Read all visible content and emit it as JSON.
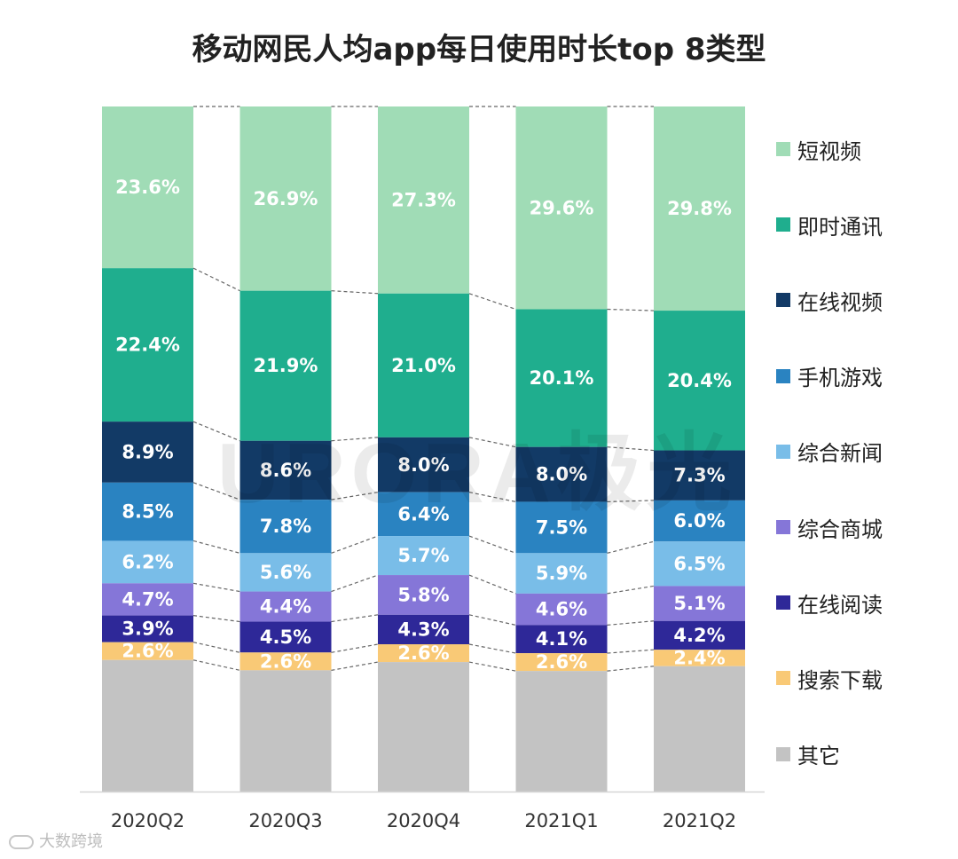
{
  "chart_data": {
    "type": "bar",
    "stacked": true,
    "title": "移动网民人均app每日使用时长top 8类型",
    "categories": [
      "2020Q2",
      "2020Q3",
      "2020Q4",
      "2021Q1",
      "2021Q2"
    ],
    "series": [
      {
        "name": "短视频",
        "color": "#a0dcb6",
        "values": [
          23.6,
          26.9,
          27.3,
          29.6,
          29.8
        ]
      },
      {
        "name": "即时通讯",
        "color": "#1fae8e",
        "values": [
          22.4,
          21.9,
          21.0,
          20.1,
          20.4
        ]
      },
      {
        "name": "在线视频",
        "color": "#123a66",
        "values": [
          8.9,
          8.6,
          8.0,
          8.0,
          7.3
        ]
      },
      {
        "name": "手机游戏",
        "color": "#2a83c1",
        "values": [
          8.5,
          7.8,
          6.4,
          7.5,
          6.0
        ]
      },
      {
        "name": "综合新闻",
        "color": "#79bde8",
        "values": [
          6.2,
          5.6,
          5.7,
          5.9,
          6.5
        ]
      },
      {
        "name": "综合商城",
        "color": "#8576d8",
        "values": [
          4.7,
          4.4,
          5.8,
          4.6,
          5.1
        ]
      },
      {
        "name": "在线阅读",
        "color": "#2e2898",
        "values": [
          3.9,
          4.5,
          4.3,
          4.1,
          4.2
        ]
      },
      {
        "name": "搜索下载",
        "color": "#f9c976",
        "values": [
          2.6,
          2.6,
          2.6,
          2.6,
          2.4
        ]
      },
      {
        "name": "其它",
        "color": "#c3c3c3",
        "values": [
          19.2,
          17.7,
          18.9,
          17.6,
          18.3
        ],
        "labeled": false
      }
    ],
    "ylim": [
      0,
      100
    ],
    "value_suffix": "%",
    "legend_position": "right",
    "connector_lines": "dashed"
  },
  "watermark": {
    "brand": "URORA极光",
    "source": "大数跨境"
  }
}
